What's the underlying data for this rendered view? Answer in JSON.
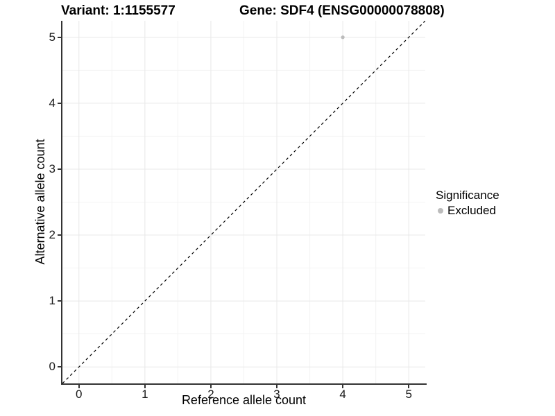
{
  "header": {
    "variant_title": "Variant: 1:1155577",
    "gene_title": "Gene: SDF4 (ENSG00000078808)"
  },
  "chart_data": {
    "type": "scatter",
    "xlabel": "Reference allele count",
    "ylabel": "Alternative allele count",
    "xlim": [
      -0.25,
      5.25
    ],
    "ylim": [
      -0.25,
      5.25
    ],
    "xticks": [
      0,
      1,
      2,
      3,
      4,
      5
    ],
    "yticks": [
      0,
      1,
      2,
      3,
      4,
      5
    ],
    "xminor": [
      0.5,
      1.5,
      2.5,
      3.5,
      4.5
    ],
    "yminor": [
      0.5,
      1.5,
      2.5,
      3.5,
      4.5
    ],
    "grid": true,
    "legend_position": "right",
    "series": [
      {
        "name": "Excluded",
        "color": "#bcbcbc",
        "point_radius": 2.6,
        "points": [
          {
            "x": 4,
            "y": 5
          }
        ]
      }
    ],
    "reference_line": {
      "type": "identity",
      "style": "dashed",
      "color": "#000000",
      "dash": "4 4"
    }
  },
  "legend": {
    "title": "Significance",
    "items": [
      {
        "label": "Excluded",
        "color": "#bcbcbc"
      }
    ]
  },
  "colors": {
    "background": "#ffffff",
    "grid_major": "#e8e8e8",
    "grid_minor": "#f3f3f3",
    "axis": "#333333",
    "tick_text": "#1a1a1a",
    "text": "#000000"
  }
}
